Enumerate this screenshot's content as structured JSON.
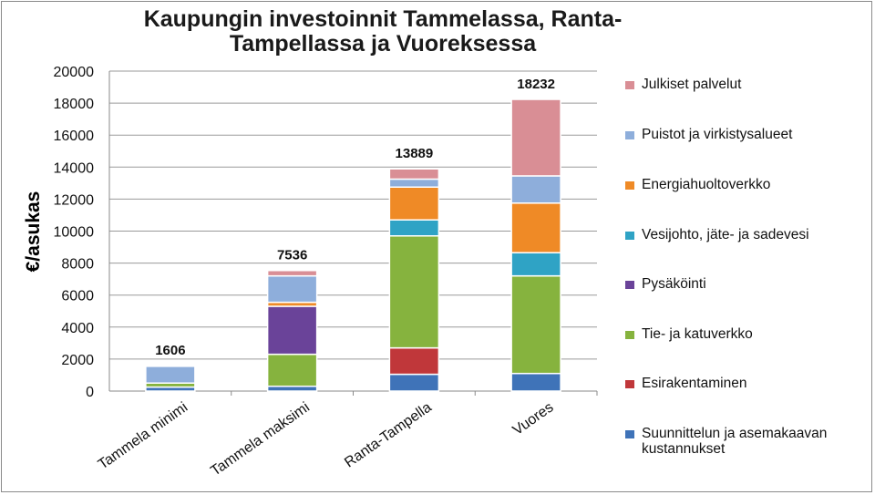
{
  "chart_data": {
    "type": "bar",
    "stacked": true,
    "title": "Kaupungin investoinnit  Tammelassa, Ranta-Tampellassa ja Vuoreksessa",
    "ylabel": "€/asukas",
    "xlabel": "",
    "ylim": [
      0,
      20000
    ],
    "yticks": [
      0,
      2000,
      4000,
      6000,
      8000,
      10000,
      12000,
      14000,
      16000,
      18000,
      20000
    ],
    "grid": true,
    "legend_position": "right",
    "categories": [
      "Tammela minimi",
      "Tammela maksimi",
      "Ranta-Tampella",
      "Vuores"
    ],
    "totals": [
      1606,
      7536,
      13889,
      18232
    ],
    "series": [
      {
        "name": "Suunnittelun ja asemakaavan kustannukset",
        "color": "#3f73b8",
        "values": [
          250,
          300,
          1050,
          1100
        ]
      },
      {
        "name": "Esirakentaminen",
        "color": "#c0373a",
        "values": [
          0,
          0,
          1650,
          0
        ]
      },
      {
        "name": "Tie- ja katuverkko",
        "color": "#86b33e",
        "values": [
          250,
          2000,
          7000,
          6100
        ]
      },
      {
        "name": "Pysäköinti",
        "color": "#6a4399",
        "values": [
          0,
          3000,
          0,
          0
        ]
      },
      {
        "name": "Vesijohto, jäte- ja sadevesi",
        "color": "#2fa3c5",
        "values": [
          0,
          0,
          1000,
          1450
        ]
      },
      {
        "name": "Energiahuoltoverkko",
        "color": "#ef8a26",
        "values": [
          0,
          250,
          2050,
          3100
        ]
      },
      {
        "name": "Puistot ja virkistysalueet",
        "color": "#8eaedb",
        "values": [
          1050,
          1650,
          500,
          1700
        ]
      },
      {
        "name": "Julkiset palvelut",
        "color": "#d98e95",
        "values": [
          56,
          336,
          639,
          4782
        ]
      }
    ]
  }
}
